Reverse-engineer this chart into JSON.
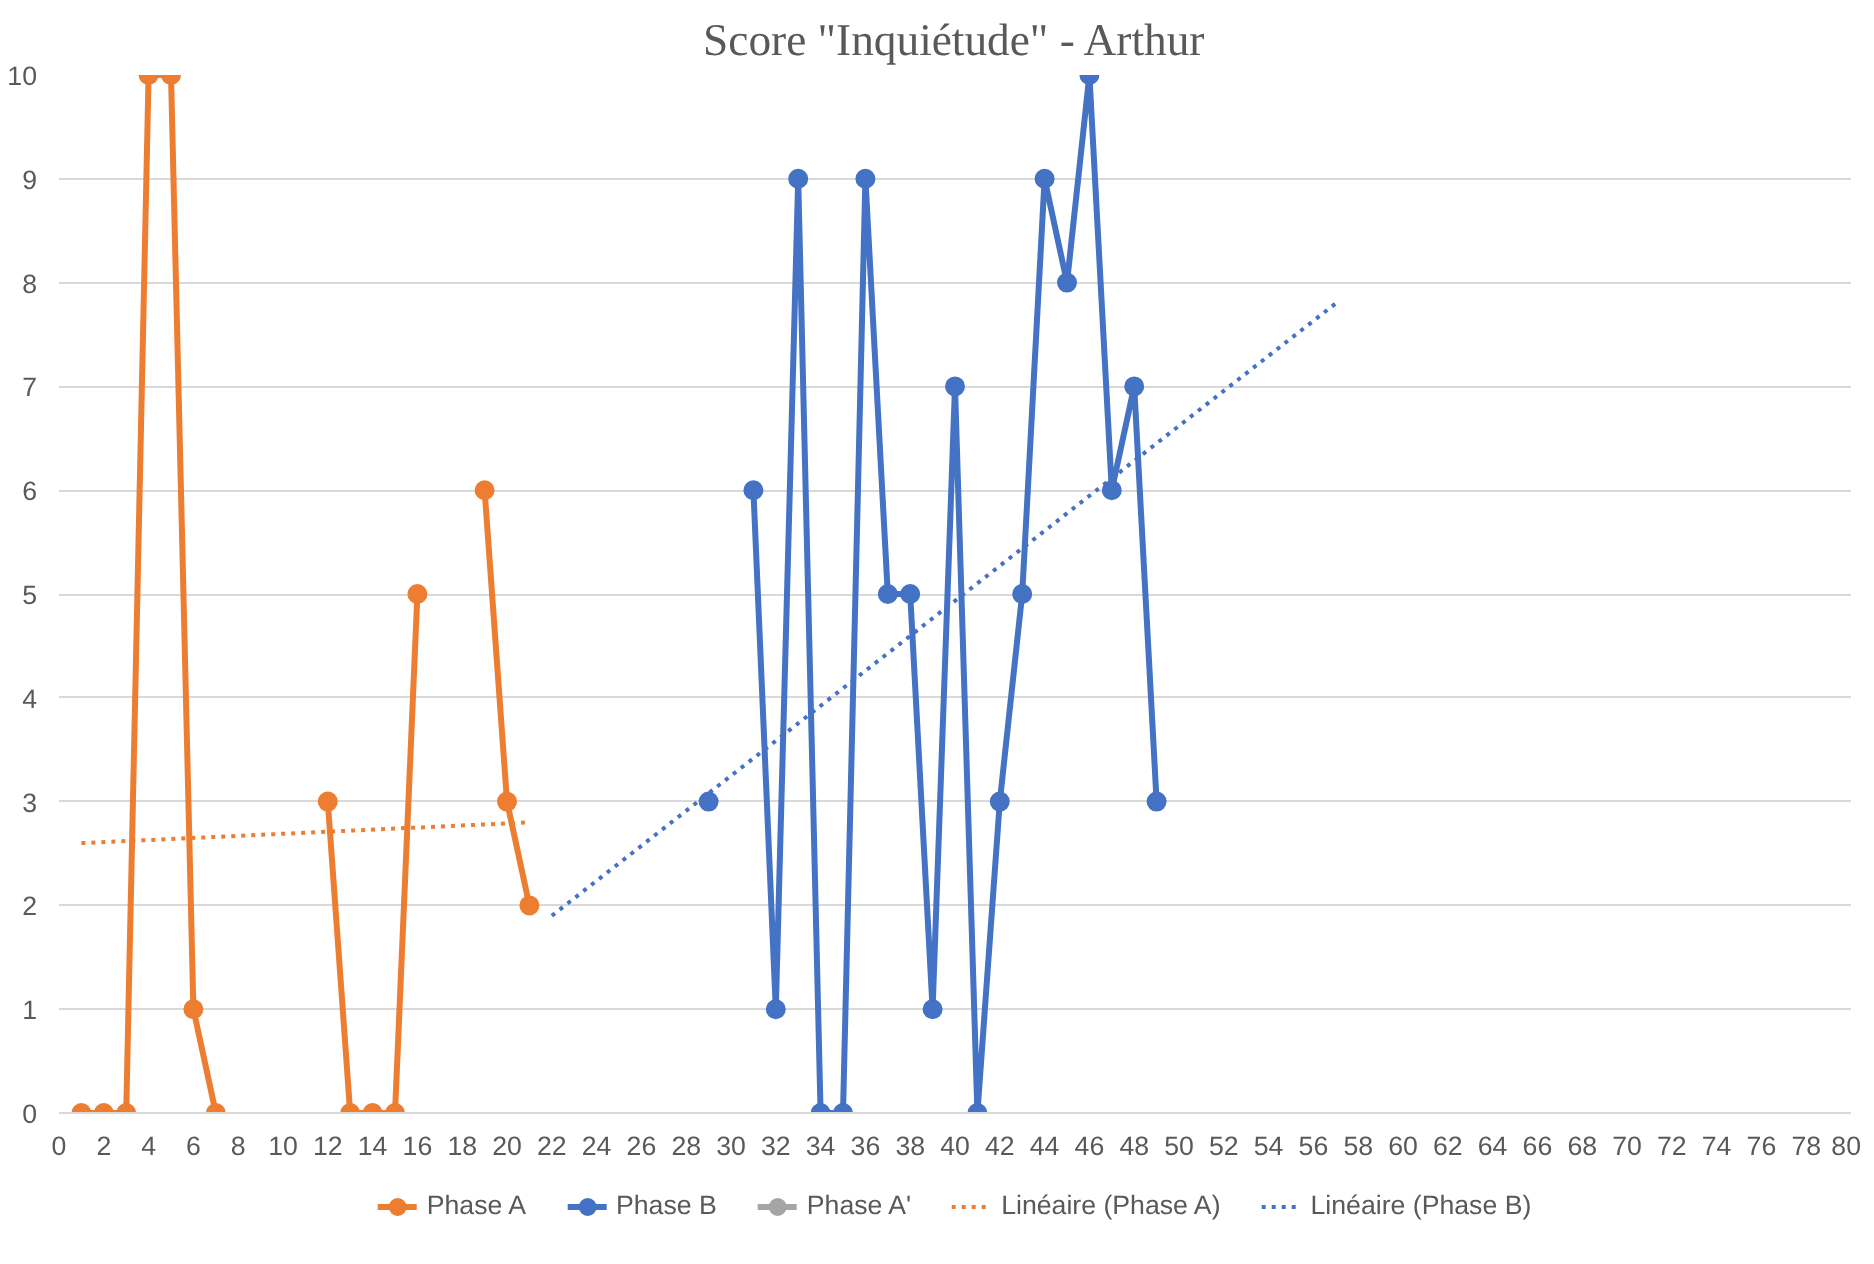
{
  "chart_data": {
    "type": "line",
    "title": "Score \"Inquiétude\" - Arthur",
    "xlim": [
      0,
      80
    ],
    "xticks": [
      0,
      2,
      4,
      6,
      8,
      10,
      12,
      14,
      16,
      18,
      20,
      22,
      24,
      26,
      28,
      30,
      32,
      34,
      36,
      38,
      40,
      42,
      44,
      46,
      48,
      50,
      52,
      54,
      56,
      58,
      60,
      62,
      64,
      66,
      68,
      70,
      72,
      74,
      76,
      78,
      80
    ],
    "ylim": [
      0,
      10
    ],
    "yticks": [
      0,
      1,
      2,
      3,
      4,
      5,
      6,
      7,
      8,
      9,
      10
    ],
    "grid": "y",
    "legend": "bottom",
    "marker": "circle",
    "series": [
      {
        "name": "Phase A",
        "color": "#ed7d31",
        "x": [
          1,
          2,
          3,
          4,
          5,
          6,
          7,
          8,
          9,
          10,
          11,
          12,
          13,
          14,
          15,
          16,
          17,
          18,
          19,
          20,
          21
        ],
        "values": [
          0,
          0,
          0,
          10,
          10,
          1,
          0,
          null,
          null,
          null,
          null,
          3,
          0,
          0,
          0,
          5,
          null,
          null,
          6,
          3,
          2
        ]
      },
      {
        "name": "Phase B",
        "color": "#4472c4",
        "x": [
          29,
          30,
          31,
          32,
          33,
          34,
          35,
          36,
          37,
          38,
          39,
          40,
          41,
          42,
          43,
          44,
          45,
          46,
          47,
          48,
          49
        ],
        "values": [
          3,
          null,
          6,
          1,
          9,
          0,
          0,
          9,
          5,
          5,
          1,
          7,
          0,
          3,
          5,
          9,
          8,
          10,
          6,
          7,
          3
        ]
      },
      {
        "name": "Phase A'",
        "color": "#a5a5a5"
      },
      {
        "name": "Linéaire (Phase A)",
        "color": "#ed7d31",
        "type": "line",
        "marker": "none",
        "line_style": "dotted",
        "x": [
          1,
          21
        ],
        "values": [
          2.6,
          2.8
        ]
      },
      {
        "name": "Linéaire (Phase B)",
        "color": "#4472c4",
        "type": "line",
        "marker": "none",
        "line_style": "dotted",
        "x": [
          22,
          57
        ],
        "values": [
          1.9,
          7.8
        ]
      }
    ]
  }
}
